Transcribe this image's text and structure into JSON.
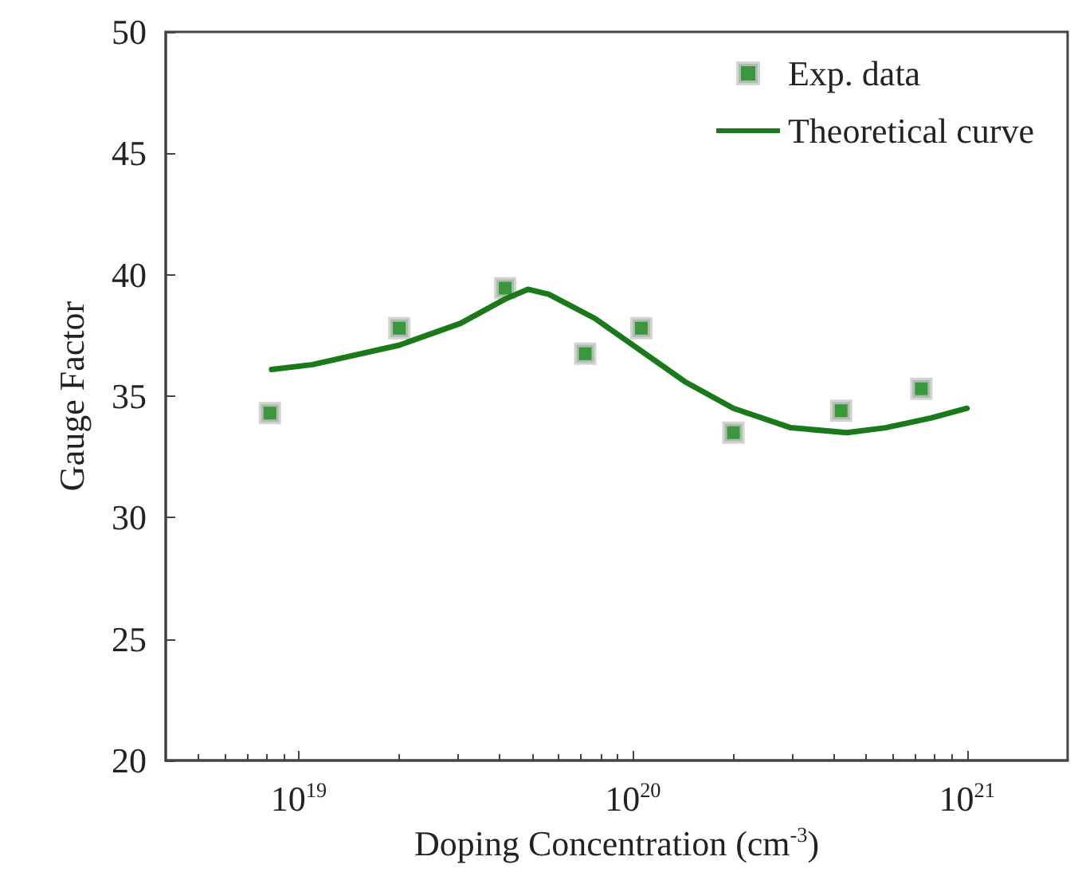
{
  "chart_data": {
    "type": "scatter",
    "xlabel": "Doping Concentration (cm$^{-3}$)",
    "ylabel": "Gauge Factor",
    "log": "x",
    "xlim": [
      4e+18,
      2e+21
    ],
    "xticks": [
      {
        "value": 1e+19,
        "label": "10$^{19}$"
      },
      {
        "value": 1e+20,
        "label": "10$^{20}$"
      },
      {
        "value": 1e+21,
        "label": "10$^{21}$"
      }
    ],
    "ylim": [
      20,
      50
    ],
    "yticks": [
      20,
      25,
      30,
      35,
      40,
      45,
      50
    ],
    "grid": false,
    "legend": "top right",
    "marker": "square",
    "series": [
      {
        "name": "Exp. data",
        "color": "#0a7d0a",
        "x": [
          8.2e+18,
          2e+19,
          4.15e+19,
          7.2e+19,
          1.06e+20,
          2e+20,
          4.2e+20,
          7.3e+20
        ],
        "values": [
          34.3,
          37.8,
          39.45,
          36.75,
          37.8,
          33.5,
          34.4,
          35.3
        ]
      },
      {
        "name": "Theoretical curve",
        "type": "line",
        "color": "#1a7a1a",
        "line_style": "solid",
        "marker": "none",
        "x": [
          8.3e+18,
          1.1e+19,
          2e+19,
          3.05e+19,
          4.15e+19,
          4.85e+19,
          5.6e+19,
          7.7e+19,
          1.05e+20,
          1.43e+20,
          2e+20,
          2.97e+20,
          4.37e+20,
          5.7e+20,
          7.8e+20,
          1e+21
        ],
        "values": [
          36.1,
          36.3,
          37.1,
          38.0,
          39.0,
          39.4,
          39.2,
          38.2,
          36.9,
          35.6,
          34.5,
          33.7,
          33.5,
          33.7,
          34.1,
          34.5
        ]
      }
    ]
  }
}
